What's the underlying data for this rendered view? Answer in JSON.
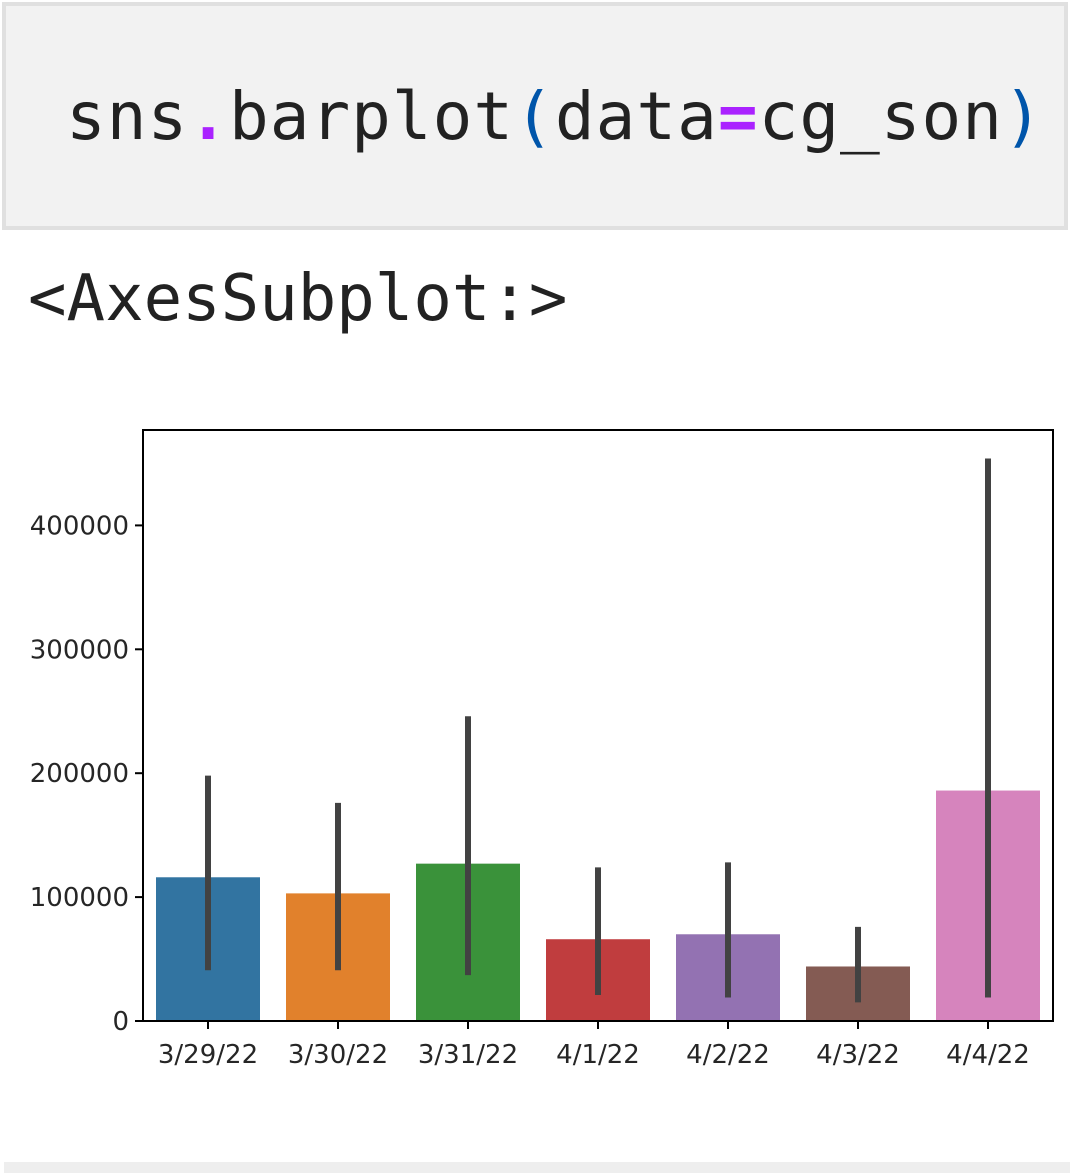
{
  "code_cell": {
    "tokens": [
      {
        "text": "sns",
        "kind": "name"
      },
      {
        "text": ".",
        "kind": "op"
      },
      {
        "text": "barplot",
        "kind": "name"
      },
      {
        "text": "(",
        "kind": "paren"
      },
      {
        "text": "data",
        "kind": "name"
      },
      {
        "text": "=",
        "kind": "op"
      },
      {
        "text": "cg_son",
        "kind": "name"
      },
      {
        "text": ")",
        "kind": "paren"
      }
    ]
  },
  "output": {
    "repr_text": "<AxesSubplot:>"
  },
  "chart_data": {
    "type": "bar",
    "categories": [
      "3/29/22",
      "3/30/22",
      "3/31/22",
      "4/1/22",
      "4/2/22",
      "4/3/22",
      "4/4/22"
    ],
    "values": [
      116000,
      103000,
      127000,
      66000,
      70000,
      44000,
      186000
    ],
    "error_bars": [
      [
        41000,
        198000
      ],
      [
        41000,
        176000
      ],
      [
        37000,
        246000
      ],
      [
        21000,
        124000
      ],
      [
        19000,
        128000
      ],
      [
        15000,
        76000
      ],
      [
        19000,
        454000
      ]
    ],
    "colors": [
      "#3274a1",
      "#e1812c",
      "#3a923a",
      "#c03d3e",
      "#9372b2",
      "#845b53",
      "#d684bd"
    ],
    "errorbar_color": "#424242",
    "yticks": [
      0,
      100000,
      200000,
      300000,
      400000
    ],
    "ylim": [
      0,
      477000
    ],
    "title": "",
    "xlabel": "",
    "ylabel": "",
    "grid": false
  }
}
